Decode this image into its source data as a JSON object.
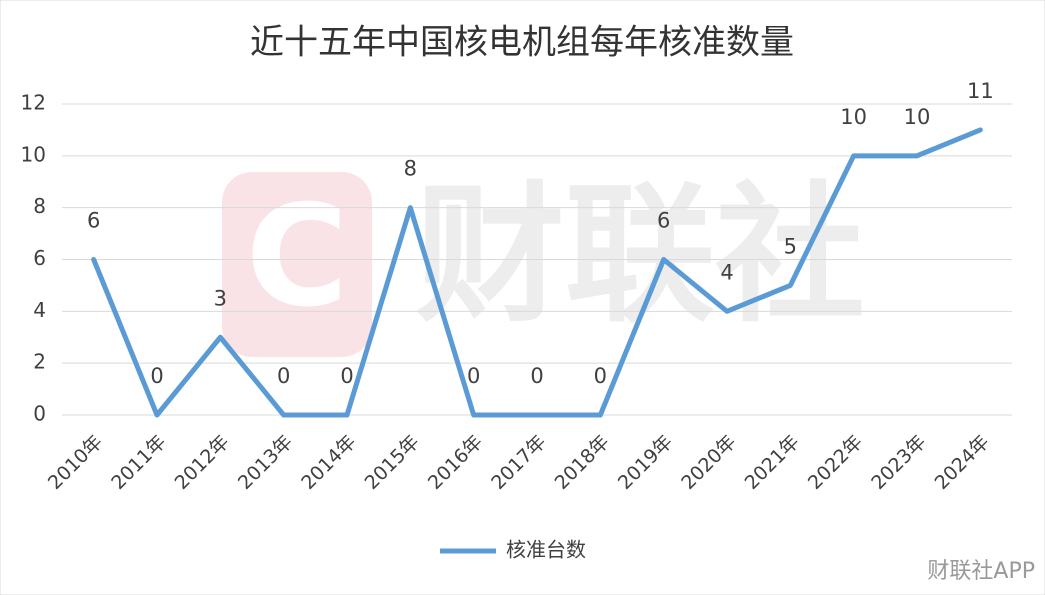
{
  "chart_data": {
    "type": "line",
    "title": "近十五年中国核电机组每年核准数量",
    "categories": [
      "2010年",
      "2011年",
      "2012年",
      "2013年",
      "2014年",
      "2015年",
      "2016年",
      "2017年",
      "2018年",
      "2019年",
      "2020年",
      "2021年",
      "2022年",
      "2023年",
      "2024年"
    ],
    "series": [
      {
        "name": "核准台数",
        "color": "#5b9bd5",
        "values": [
          6,
          0,
          3,
          0,
          0,
          8,
          0,
          0,
          0,
          6,
          4,
          5,
          10,
          10,
          11
        ]
      }
    ],
    "ylim": [
      0,
      12
    ],
    "yticks": [
      0,
      2,
      4,
      6,
      8,
      10,
      12
    ],
    "grid": true,
    "legend": "bottom",
    "watermark": "财联社",
    "source": "财联社APP"
  }
}
